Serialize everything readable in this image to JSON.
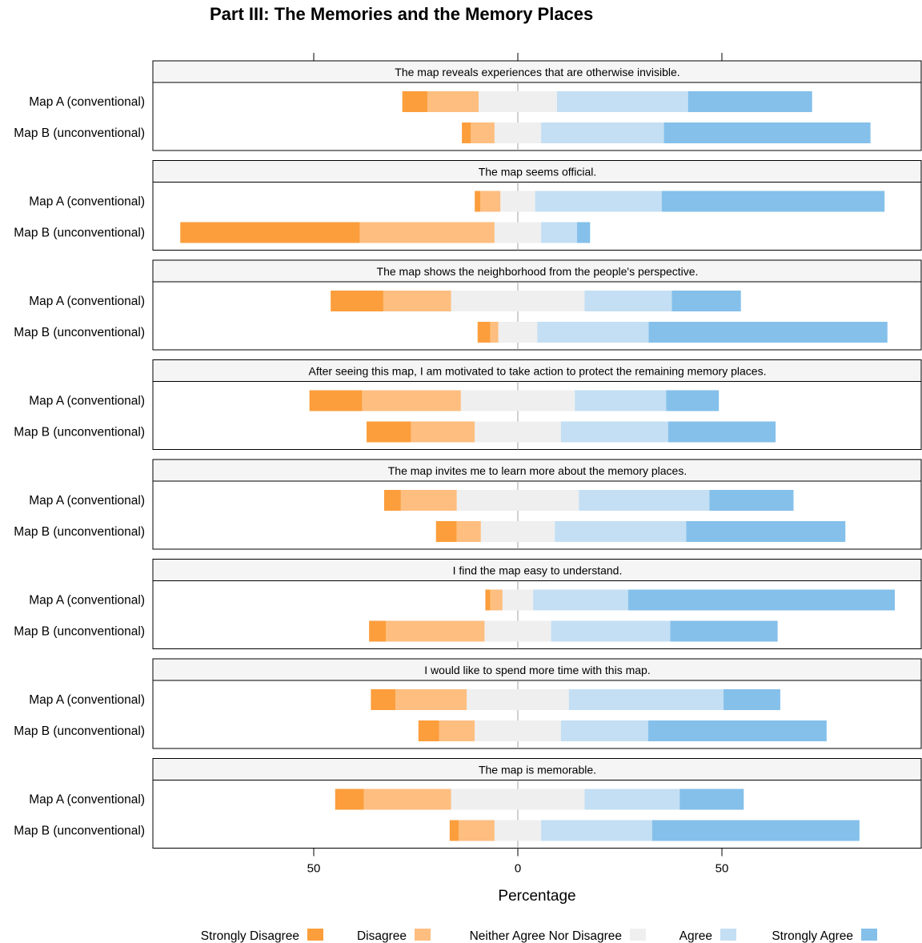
{
  "title": "Part III: The Memories and the Memory Places",
  "chart_data": {
    "type": "bar",
    "subtype": "diverging stacked bar (likert)",
    "title": "Part III: The Memories and the Memory Places",
    "xlabel": "Percentage",
    "xlim": [
      -90,
      99
    ],
    "x_ticks": [
      -50,
      0,
      50
    ],
    "x_tick_labels": [
      "50",
      "0",
      "50"
    ],
    "legend_position": "bottom",
    "levels": [
      "Strongly Disagree",
      "Disagree",
      "Neither Agree Nor Disagree",
      "Agree",
      "Strongly Agree"
    ],
    "colors": [
      "#fc9e3c",
      "#fdbe80",
      "#efefef",
      "#c4dff3",
      "#84c0ea"
    ],
    "groups": [
      {
        "label": "The map reveals experiences that are otherwise invisible.",
        "rows": [
          {
            "label": "Map A (conventional)",
            "values": [
              6.2,
              12.5,
              19.2,
              32.1,
              30.4
            ]
          },
          {
            "label": "Map B (unconventional)",
            "values": [
              2.2,
              5.8,
              11.4,
              30.1,
              50.6
            ]
          }
        ]
      },
      {
        "label": "The map seems official.",
        "rows": [
          {
            "label": "Map A (conventional)",
            "values": [
              1.4,
              4.9,
              8.5,
              31.0,
              54.6
            ]
          },
          {
            "label": "Map B (unconventional)",
            "values": [
              44.0,
              33.0,
              11.4,
              8.8,
              3.2
            ]
          }
        ]
      },
      {
        "label": "The map shows the neighborhood from the people's perspective.",
        "rows": [
          {
            "label": "Map A (conventional)",
            "values": [
              12.9,
              16.6,
              32.7,
              21.4,
              16.9
            ]
          },
          {
            "label": "Map B (unconventional)",
            "values": [
              3.1,
              2.0,
              9.5,
              27.3,
              58.5
            ]
          }
        ]
      },
      {
        "label": "After seeing this map, I am motivated to take action to protect the remaining memory places.",
        "rows": [
          {
            "label": "Map A (conventional)",
            "values": [
              12.9,
              24.2,
              27.9,
              22.4,
              12.9
            ]
          },
          {
            "label": "Map B (unconventional)",
            "values": [
              10.9,
              15.6,
              21.1,
              26.3,
              26.3
            ]
          }
        ]
      },
      {
        "label": "The map invites me to learn more about the memory places.",
        "rows": [
          {
            "label": "Map A (conventional)",
            "values": [
              4.1,
              13.7,
              29.9,
              32.0,
              20.6
            ]
          },
          {
            "label": "Map B (unconventional)",
            "values": [
              5.1,
              5.9,
              18.1,
              32.2,
              39.0
            ]
          }
        ]
      },
      {
        "label": "I find the map easy to understand.",
        "rows": [
          {
            "label": "Map A (conventional)",
            "values": [
              1.2,
              3.0,
              7.5,
              23.3,
              65.3
            ]
          },
          {
            "label": "Map B (unconventional)",
            "values": [
              4.1,
              24.2,
              16.3,
              29.2,
              26.3
            ]
          }
        ]
      },
      {
        "label": "I would like to spend more time with this map.",
        "rows": [
          {
            "label": "Map A (conventional)",
            "values": [
              6.0,
              17.5,
              25.0,
              37.9,
              13.9
            ]
          },
          {
            "label": "Map B (unconventional)",
            "values": [
              5.1,
              8.7,
              21.1,
              21.4,
              43.7
            ]
          }
        ]
      },
      {
        "label": "The map is memorable.",
        "rows": [
          {
            "label": "Map A (conventional)",
            "values": [
              7.0,
              21.4,
              32.7,
              23.3,
              15.7
            ]
          },
          {
            "label": "Map B (unconventional)",
            "values": [
              2.2,
              8.8,
              11.4,
              27.2,
              50.8
            ]
          }
        ]
      }
    ]
  }
}
